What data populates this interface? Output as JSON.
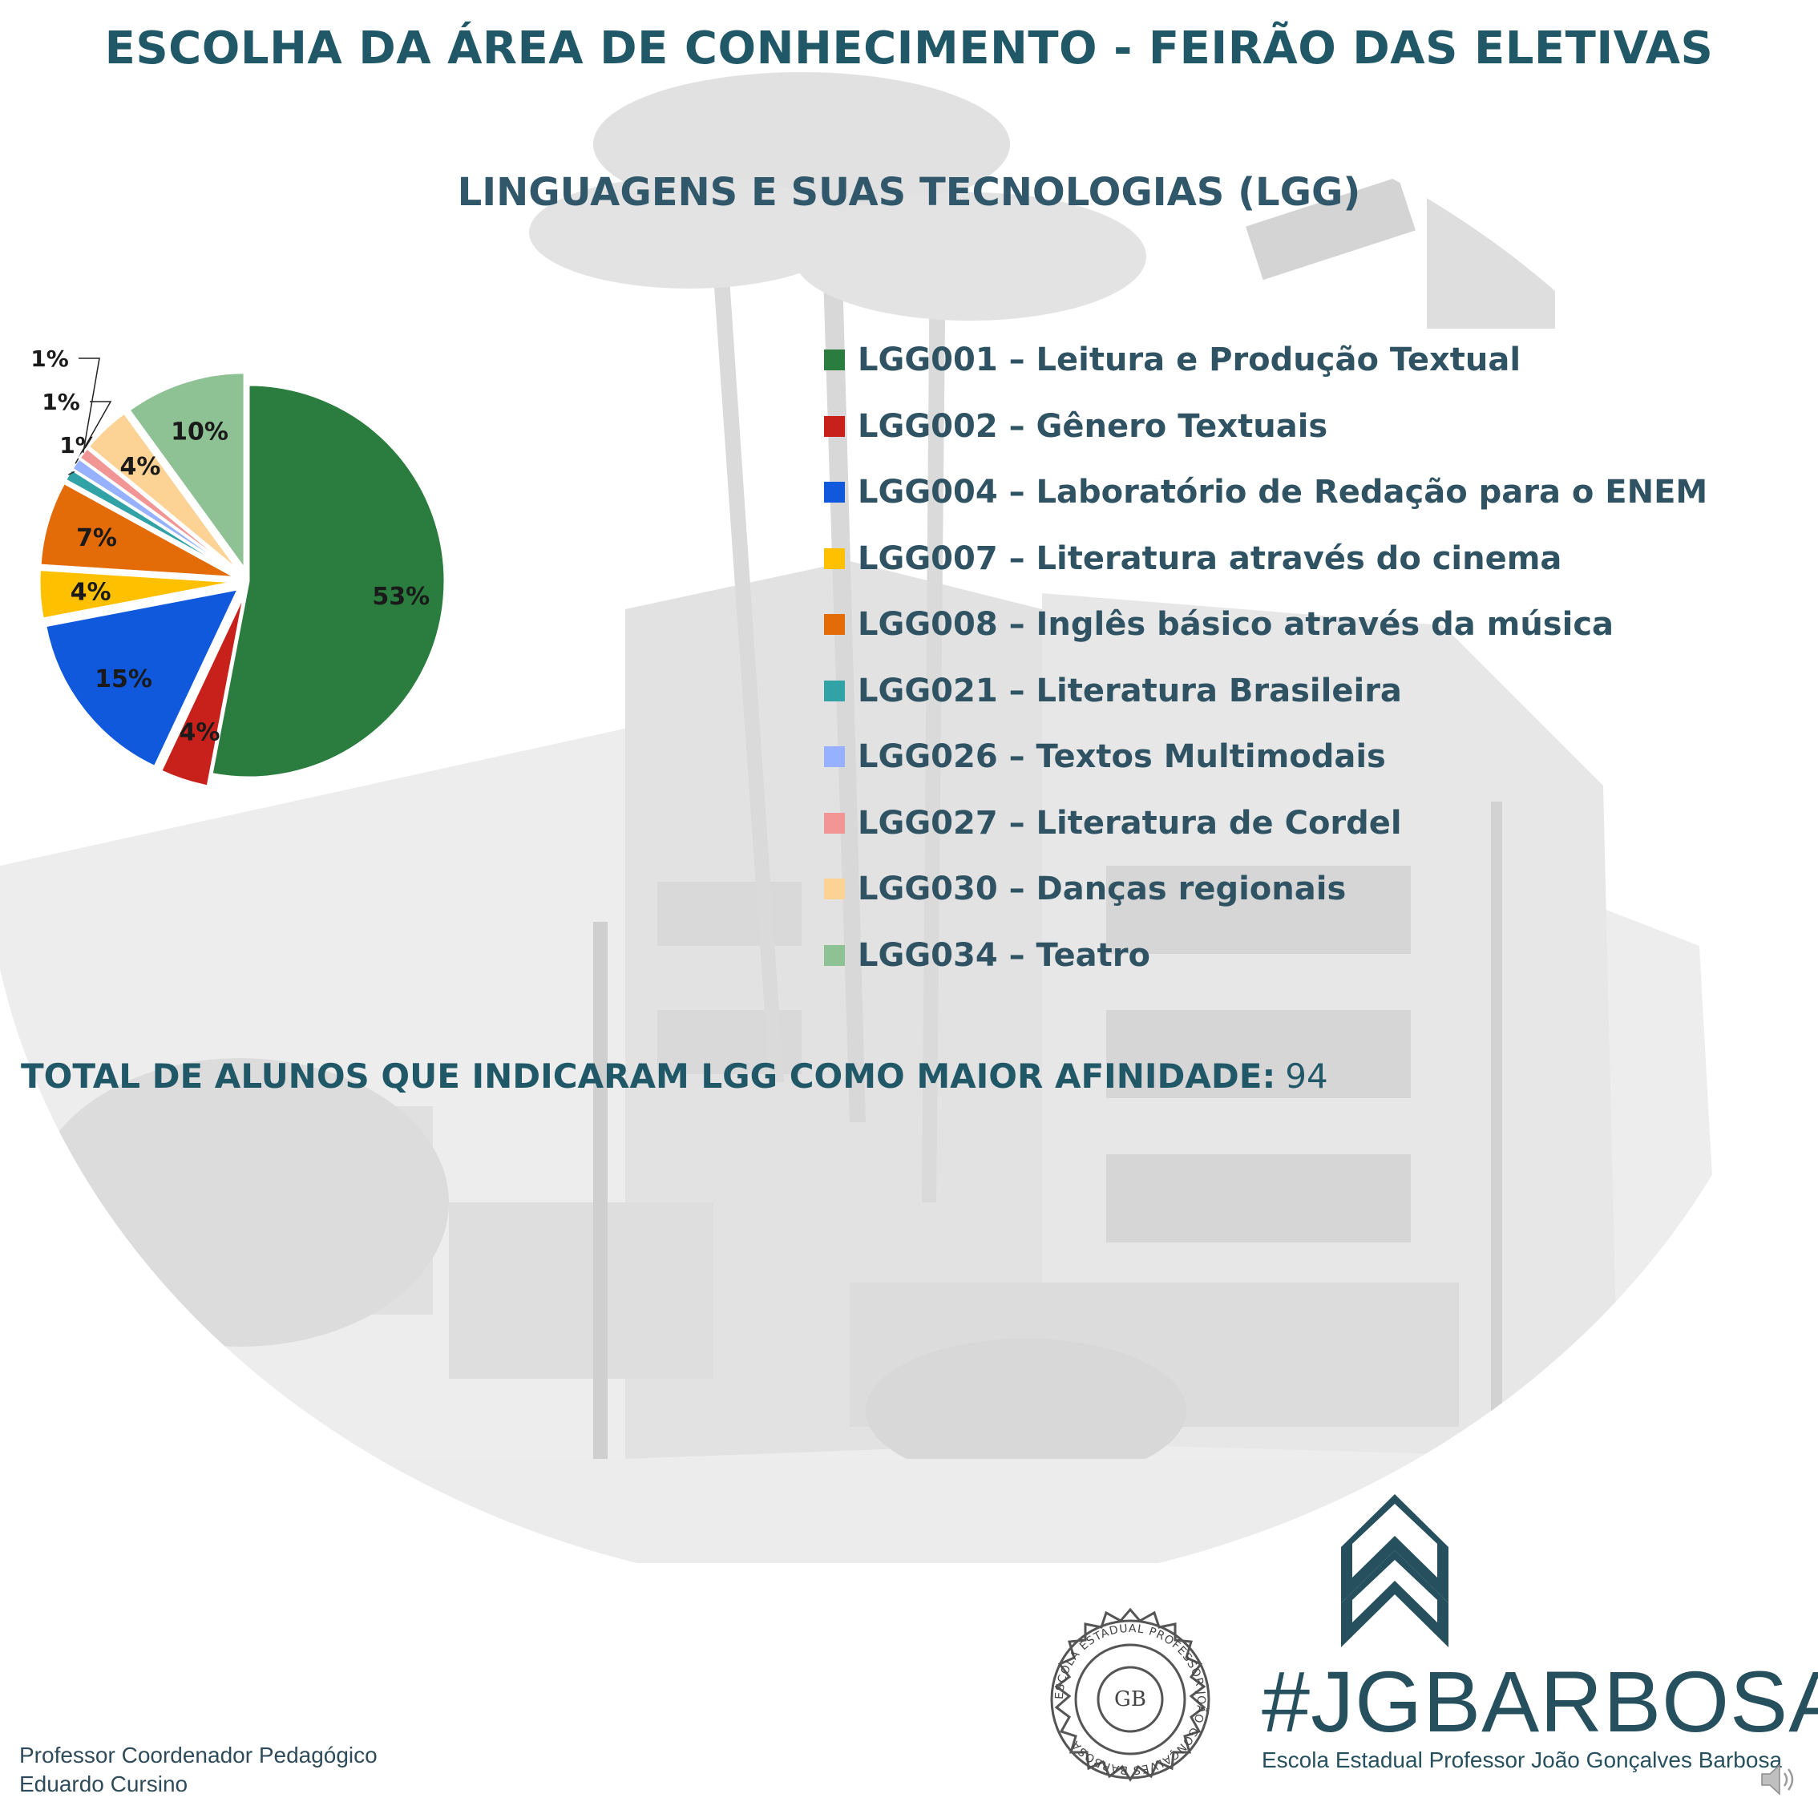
{
  "header": {
    "title": "ESCOLHA DA ÁREA DE CONHECIMENTO - FEIRÃO DAS ELETIVAS"
  },
  "chart_data": {
    "type": "pie",
    "title": "LINGUAGENS E SUAS TECNOLOGIAS (LGG)",
    "categories": [
      "LGG001 – Leitura e Produção Textual",
      "LGG002 – Gênero Textuais",
      "LGG004 – Laboratório de Redação para o ENEM",
      "LGG007 – Literatura através do cinema",
      "LGG008 – Inglês básico através da música",
      "LGG021 – Literatura Brasileira",
      "LGG026 – Textos Multimodais",
      "LGG027 – Literatura de Cordel",
      "LGG030 – Danças regionais",
      "LGG034 – Teatro"
    ],
    "values": [
      53,
      4,
      15,
      4,
      7,
      1,
      1,
      1,
      4,
      10
    ],
    "labels": [
      "53%",
      "4%",
      "15%",
      "4%",
      "7%",
      "1%",
      "1%",
      "1%",
      "4%",
      "10%"
    ],
    "colors": [
      "#2a7d3e",
      "#c8211b",
      "#1058dc",
      "#ffc000",
      "#e36c09",
      "#31a2a6",
      "#95b1ff",
      "#f19695",
      "#fcd295",
      "#8ec193"
    ],
    "legend": "right"
  },
  "summary": {
    "total_label": "TOTAL DE ALUNOS QUE INDICARAM LGG COMO MAIOR AFINIDADE:",
    "total_value": "94"
  },
  "footer": {
    "role": "Professor Coordenador Pedagógico",
    "name": "Eduardo Cursino",
    "brand": "#JGBARBOSA",
    "school": "Escola Estadual Professor João Gonçalves Barbosa",
    "seal_text": "ESCOLA ESTADUAL PROFESSOR JOÃO GONÇALVES BARBOSA",
    "seal_monogram": "GB"
  },
  "icons": {
    "logo": "double-chevron-up-icon",
    "seal": "school-seal-icon",
    "audio": "speaker-icon"
  }
}
